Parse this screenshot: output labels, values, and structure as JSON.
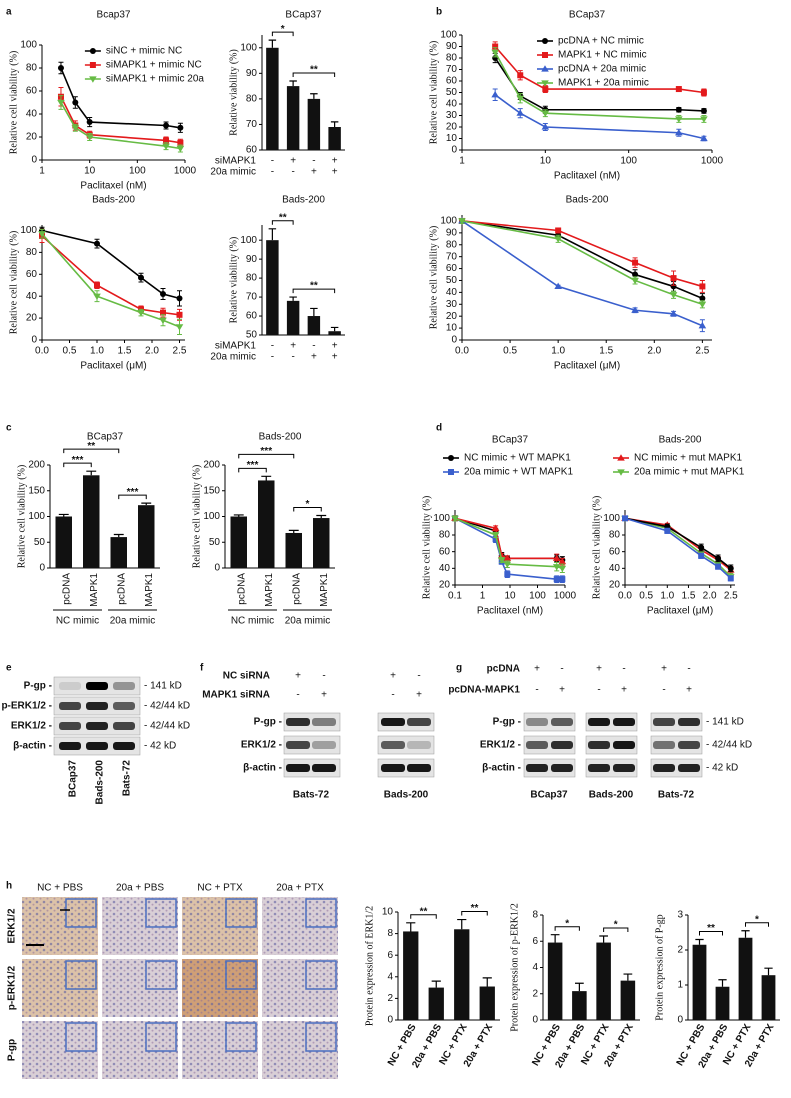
{
  "panel_labels": [
    "a",
    "b",
    "c",
    "d",
    "e",
    "f",
    "g",
    "h"
  ],
  "chart_data": [
    {
      "type": "line",
      "title": "Bcap37",
      "xlabel": "Paclitaxel (nM)",
      "ylabel": "Relative cell viability (%)",
      "xscale": "log",
      "x": [
        2.5,
        5,
        10,
        400,
        800
      ],
      "xlim": [
        1,
        1000
      ],
      "xticks": [
        1,
        10,
        100,
        1000
      ],
      "ylim": [
        0,
        100
      ],
      "yticks": [
        0,
        20,
        40,
        60,
        80,
        100
      ],
      "legend": "upper right",
      "series": [
        {
          "name": "siNC + mimic NC",
          "color": "#000000",
          "marker": "circle",
          "values": [
            80,
            50,
            33,
            30,
            28
          ],
          "errors": [
            5,
            5,
            4,
            3,
            4
          ]
        },
        {
          "name": "siMAPK1 + mimic NC",
          "color": "#e31a1c",
          "marker": "square",
          "values": [
            55,
            30,
            22,
            17,
            15
          ],
          "errors": [
            8,
            4,
            3,
            3,
            3
          ]
        },
        {
          "name": "siMAPK1 + mimic 20a",
          "color": "#66bb44",
          "marker": "triangle-down",
          "values": [
            50,
            28,
            20,
            12,
            10
          ],
          "errors": [
            6,
            3,
            3,
            3,
            3
          ]
        }
      ]
    },
    {
      "type": "bar",
      "title": "BCap37",
      "ylabel": "Relative viability (%)",
      "ylim": [
        60,
        105
      ],
      "yticks": [
        60,
        70,
        80,
        90,
        100
      ],
      "color": "#111111",
      "values": [
        100,
        85,
        80,
        69
      ],
      "errors": [
        3,
        2,
        2,
        2
      ],
      "condition_table": [
        {
          "label": "siMAPK1",
          "marks": [
            "-",
            "+",
            "-",
            "+"
          ]
        },
        {
          "label": "20a mimic",
          "marks": [
            "-",
            "-",
            "+",
            "+"
          ]
        }
      ],
      "annotations": [
        "*",
        "**"
      ]
    },
    {
      "type": "line",
      "title": "BCap37",
      "xlabel": "Paclitaxel (nM)",
      "ylabel": "Relative cell viability (%)",
      "xscale": "log",
      "x": [
        2.5,
        5,
        10,
        400,
        800
      ],
      "xlim": [
        1,
        1000
      ],
      "xticks": [
        1,
        10,
        100,
        1000
      ],
      "ylim": [
        0,
        100
      ],
      "yticks": [
        0,
        10,
        20,
        30,
        40,
        50,
        60,
        70,
        80,
        90,
        100
      ],
      "legend": "upper right",
      "series": [
        {
          "name": "pcDNA + NC mimic",
          "color": "#000000",
          "marker": "circle",
          "values": [
            80,
            47,
            35,
            35,
            34
          ],
          "errors": [
            4,
            3,
            3,
            2,
            2
          ]
        },
        {
          "name": "MAPK1 + NC mimic",
          "color": "#e31a1c",
          "marker": "square",
          "values": [
            90,
            65,
            53,
            53,
            50
          ],
          "errors": [
            4,
            4,
            3,
            2,
            3
          ]
        },
        {
          "name": "pcDNA + 20a mimic",
          "color": "#3a5fcd",
          "marker": "triangle-up",
          "values": [
            48,
            32,
            20,
            15,
            10
          ],
          "errors": [
            5,
            4,
            3,
            3,
            2
          ]
        },
        {
          "name": "MAPK1 + 20a mimic",
          "color": "#66bb44",
          "marker": "triangle-down",
          "values": [
            85,
            45,
            32,
            27,
            27
          ],
          "errors": [
            4,
            4,
            3,
            3,
            3
          ]
        }
      ]
    },
    {
      "type": "line",
      "title": "Bads-200",
      "xlabel": "Paclitaxel (μM)",
      "ylabel": "Relative cell viability (%)",
      "x": [
        0,
        1,
        1.8,
        2.2,
        2.5
      ],
      "xlim": [
        0,
        2.6
      ],
      "xticks": [
        {
          "value": 0,
          "label": "0.0"
        },
        0.5,
        {
          "value": 1,
          "label": "1.0"
        },
        1.5,
        {
          "value": 2,
          "label": "2.0"
        },
        2.5
      ],
      "ylim": [
        0,
        105
      ],
      "yticks": [
        0,
        20,
        40,
        60,
        80,
        100
      ],
      "series": [
        {
          "color": "#000000",
          "marker": "circle",
          "values": [
            100,
            88,
            57,
            42,
            38
          ],
          "errors": [
            3,
            4,
            4,
            5,
            7
          ]
        },
        {
          "color": "#e31a1c",
          "marker": "square",
          "values": [
            95,
            50,
            28,
            25,
            23
          ],
          "errors": [
            6,
            3,
            3,
            4,
            5
          ]
        },
        {
          "color": "#66bb44",
          "marker": "triangle-down",
          "values": [
            97,
            40,
            25,
            18,
            12
          ],
          "errors": [
            4,
            5,
            3,
            5,
            7
          ]
        }
      ]
    },
    {
      "type": "bar",
      "title": "Bads-200",
      "ylabel": "Relative viability (%)",
      "ylim": [
        50,
        108
      ],
      "yticks": [
        50,
        60,
        70,
        80,
        90,
        100
      ],
      "color": "#111111",
      "values": [
        100,
        68,
        60,
        52
      ],
      "errors": [
        6,
        2,
        4,
        2
      ],
      "condition_table": [
        {
          "label": "siMAPK1",
          "marks": [
            "-",
            "+",
            "-",
            "+"
          ]
        },
        {
          "label": "20a mimic",
          "marks": [
            "-",
            "-",
            "+",
            "+"
          ]
        }
      ],
      "annotations": [
        "**",
        "**"
      ]
    },
    {
      "type": "line",
      "title": "Bads-200",
      "xlabel": "Paclitaxel (μM)",
      "ylabel": "Relative cell viability (%)",
      "x": [
        0,
        1,
        1.8,
        2.2,
        2.5
      ],
      "xlim": [
        0,
        2.6
      ],
      "xticks": [
        {
          "value": 0,
          "label": "0.0"
        },
        0.5,
        {
          "value": 1,
          "label": "1.0"
        },
        1.5,
        {
          "value": 2,
          "label": "2.0"
        },
        2.5
      ],
      "ylim": [
        0,
        105
      ],
      "yticks": [
        0,
        10,
        20,
        30,
        40,
        50,
        60,
        70,
        80,
        90,
        100
      ],
      "series": [
        {
          "color": "#000000",
          "marker": "circle",
          "values": [
            100,
            88,
            55,
            45,
            35
          ],
          "errors": [
            2,
            3,
            4,
            4,
            4
          ]
        },
        {
          "color": "#e31a1c",
          "marker": "square",
          "values": [
            100,
            92,
            65,
            52,
            45
          ],
          "errors": [
            2,
            2,
            4,
            6,
            5
          ]
        },
        {
          "color": "#3a5fcd",
          "marker": "triangle-up",
          "values": [
            100,
            45,
            25,
            22,
            12
          ],
          "errors": [
            2,
            1,
            2,
            2,
            5
          ]
        },
        {
          "color": "#66bb44",
          "marker": "triangle-down",
          "values": [
            100,
            85,
            50,
            38,
            30
          ],
          "errors": [
            2,
            3,
            3,
            3,
            3
          ]
        }
      ]
    },
    {
      "type": "bar",
      "title": "BCap37",
      "ylabel": "Relative cell viability (%)",
      "ylim": [
        0,
        200
      ],
      "yticks": [
        0,
        50,
        100,
        150,
        200
      ],
      "color": "#111111",
      "values": [
        100,
        180,
        60,
        122
      ],
      "errors": [
        4,
        8,
        5,
        4
      ],
      "categories": [
        "pcDNA",
        "MAPK1",
        "pcDNA",
        "MAPK1"
      ],
      "groups": [
        "NC mimic",
        "20a mimic"
      ],
      "annotations": [
        "***",
        "**",
        "***"
      ]
    },
    {
      "type": "bar",
      "title": "Bads-200",
      "ylabel": "Relative cell viability (%)",
      "ylim": [
        0,
        200
      ],
      "yticks": [
        0,
        50,
        100,
        150,
        200
      ],
      "color": "#111111",
      "values": [
        100,
        170,
        68,
        97
      ],
      "errors": [
        3,
        8,
        5,
        5
      ],
      "categories": [
        "pcDNA",
        "MAPK1",
        "pcDNA",
        "MAPK1"
      ],
      "groups": [
        "NC mimic",
        "20a mimic"
      ],
      "annotations": [
        "***",
        "***",
        "*"
      ]
    },
    {
      "type": "line",
      "title": "BCap37",
      "xlabel": "Paclitaxel (nM)",
      "ylabel": "Relative cell viability (%)",
      "xscale": "log",
      "x": [
        0.1,
        3,
        5,
        8,
        500,
        800
      ],
      "xlim": [
        0.1,
        1000
      ],
      "xticks": [
        0.1,
        1,
        10,
        100,
        1000
      ],
      "ylim": [
        20,
        110
      ],
      "yticks": [
        20,
        40,
        60,
        80,
        100
      ],
      "legend": "above",
      "series": [
        {
          "name": "NC mimic + WT MAPK1",
          "color": "#000000",
          "marker": "circle",
          "values": [
            100,
            85,
            55,
            52,
            52,
            50
          ],
          "errors": [
            3,
            3,
            4,
            3,
            4,
            4
          ]
        },
        {
          "name": "20a mimic + WT MAPK1",
          "color": "#3a5fcd",
          "marker": "square",
          "values": [
            100,
            75,
            48,
            33,
            27,
            27
          ],
          "errors": [
            3,
            4,
            3,
            4,
            4,
            4
          ]
        },
        {
          "color": "#e31a1c",
          "marker": "triangle-up",
          "values": [
            100,
            88,
            55,
            52,
            52,
            48
          ],
          "errors": [
            3,
            3,
            3,
            3,
            5,
            4
          ]
        },
        {
          "color": "#66bb44",
          "marker": "triangle-down",
          "values": [
            100,
            80,
            50,
            45,
            42,
            40
          ],
          "errors": [
            3,
            3,
            3,
            4,
            5,
            5
          ]
        }
      ]
    },
    {
      "type": "line",
      "title": "Bads-200",
      "xlabel": "Paclitaxel (μM)",
      "ylabel": "Relative cell viability (%)",
      "x": [
        0,
        1,
        1.8,
        2.2,
        2.5
      ],
      "xlim": [
        0,
        2.6
      ],
      "xticks": [
        {
          "value": 0,
          "label": "0.0"
        },
        0.5,
        {
          "value": 1,
          "label": "1.0"
        },
        1.5,
        {
          "value": 2,
          "label": "2.0"
        },
        2.5
      ],
      "ylim": [
        20,
        110
      ],
      "yticks": [
        20,
        40,
        60,
        80,
        100
      ],
      "legend": "above",
      "series": [
        {
          "name": "NC mimic + mut MAPK1",
          "color": "#e31a1c",
          "marker": "triangle-up",
          "values": [
            100,
            92,
            62,
            50,
            38
          ],
          "errors": [
            2,
            2,
            4,
            4,
            4
          ]
        },
        {
          "name": "20a mimic + mut MAPK1",
          "color": "#66bb44",
          "marker": "triangle-down",
          "values": [
            100,
            88,
            58,
            45,
            30
          ],
          "errors": [
            2,
            3,
            3,
            4,
            4
          ]
        },
        {
          "color": "#000000",
          "marker": "circle",
          "values": [
            100,
            90,
            65,
            52,
            40
          ],
          "errors": [
            2,
            3,
            4,
            4,
            4
          ]
        },
        {
          "color": "#3a5fcd",
          "marker": "square",
          "values": [
            100,
            85,
            55,
            42,
            28
          ],
          "errors": [
            2,
            3,
            3,
            3,
            3
          ]
        }
      ]
    },
    {
      "type": "bar",
      "ylabel": "Protein expression of ERK1/2",
      "ylim": [
        0,
        10
      ],
      "yticks": [
        0,
        2,
        4,
        6,
        8,
        10
      ],
      "color": "#111111",
      "values": [
        8.2,
        3,
        8.4,
        3.1
      ],
      "errors": [
        0.8,
        0.6,
        0.9,
        0.8
      ],
      "categories": [
        "NC + PBS",
        "20a + PBS",
        "NC + PTX",
        "20a + PTX"
      ],
      "annotations": [
        "**",
        "**"
      ]
    },
    {
      "type": "bar",
      "ylabel": "Protein expression of p-ERK1/2",
      "ylim": [
        0,
        8
      ],
      "yticks": [
        0,
        2,
        4,
        6,
        8
      ],
      "color": "#111111",
      "values": [
        5.9,
        2.2,
        5.9,
        3
      ],
      "errors": [
        0.6,
        0.6,
        0.5,
        0.5
      ],
      "categories": [
        "NC + PBS",
        "20a + PBS",
        "NC + PTX",
        "20a + PTX"
      ],
      "annotations": [
        "*",
        "*"
      ]
    },
    {
      "type": "bar",
      "ylabel": "Protein expression of P-gp",
      "ylim": [
        0,
        3
      ],
      "yticks": [
        0,
        1,
        2,
        3
      ],
      "color": "#111111",
      "values": [
        2.15,
        0.95,
        2.35,
        1.28
      ],
      "errors": [
        0.15,
        0.2,
        0.2,
        0.2
      ],
      "categories": [
        "NC + PBS",
        "20a + PBS",
        "NC + PTX",
        "20a + PTX"
      ],
      "annotations": [
        "**",
        "*"
      ]
    }
  ],
  "blots": {
    "e": {
      "rows": [
        "P-gp -",
        "p-ERK1/2 -",
        "ERK1/2 -",
        "β-actin -"
      ],
      "sizes": [
        "- 141 kD",
        "- 42/44 kD",
        "- 42/44 kD",
        "- 42 kD"
      ],
      "lanes": [
        "BCap37",
        "Bads-200",
        "Bats-72"
      ]
    },
    "f": {
      "conditions": [
        {
          "label": "NC siRNA",
          "marks": [
            "+",
            "-",
            "+",
            "-"
          ]
        },
        {
          "label": "MAPK1 siRNA",
          "marks": [
            "-",
            "+",
            "-",
            "+"
          ]
        }
      ],
      "rows": [
        "P-gp -",
        "ERK1/2 -",
        "β-actin -"
      ],
      "cells": [
        "Bats-72",
        "Bads-200"
      ]
    },
    "g": {
      "conditions": [
        {
          "label": "pcDNA",
          "marks": [
            "+",
            "-",
            "+",
            "-",
            "+",
            "-"
          ]
        },
        {
          "label": "pcDNA-MAPK1",
          "marks": [
            "-",
            "+",
            "-",
            "+",
            "-",
            "+"
          ]
        }
      ],
      "rows": [
        "P-gp -",
        "ERK1/2 -",
        "β-actin -"
      ],
      "sizes": [
        "- 141 kD",
        "- 42/44 kD",
        "- 42 kD"
      ],
      "cells": [
        "BCap37",
        "Bads-200",
        "Bats-72"
      ]
    }
  },
  "ihc": {
    "columns": [
      "NC + PBS",
      "20a + PBS",
      "NC + PTX",
      "20a + PTX"
    ],
    "rows": [
      "ERK1/2",
      "p-ERK1/2",
      "P-gp"
    ]
  }
}
